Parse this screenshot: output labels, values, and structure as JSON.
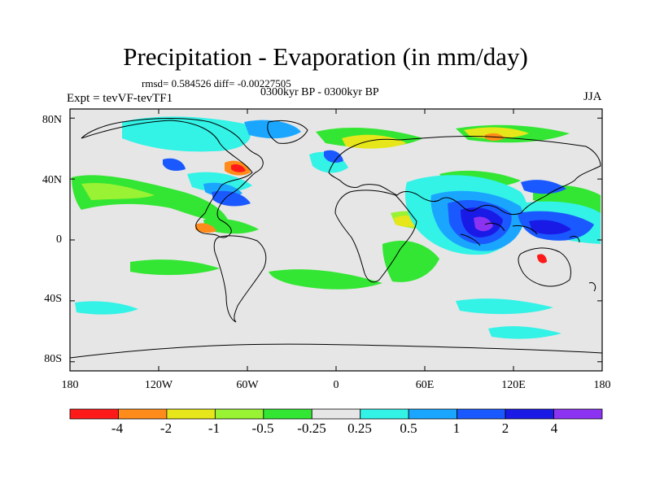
{
  "figure": {
    "title": "Precipitation - Evaporation (in mm/day)",
    "stats": "rmsd= 0.584526 diff= -0.00227505",
    "period": "0300kyr BP - 0300kyr BP",
    "experiment": "Expt = tevVF-tevTF1",
    "season": "JJA"
  },
  "axes": {
    "lat_labels": [
      "80N",
      "40N",
      "0",
      "40S",
      "80S"
    ],
    "lat_values": [
      80,
      40,
      0,
      -40,
      -80
    ],
    "lon_labels": [
      "180",
      "120W",
      "60W",
      "0",
      "60E",
      "120E",
      "180"
    ],
    "lon_values": [
      -180,
      -120,
      -60,
      0,
      60,
      120,
      180
    ]
  },
  "colorbar": {
    "colors": [
      "#ff1a1a",
      "#ff8c1a",
      "#e6e61a",
      "#99f233",
      "#33e633",
      "#e6e6e6",
      "#33f2e6",
      "#1aa6ff",
      "#1a59ff",
      "#1a1ae6",
      "#8c33f2"
    ],
    "labels": [
      "-4",
      "-2",
      "-1",
      "-0.5",
      "-0.25",
      "0.25",
      "0.5",
      "1",
      "2",
      "4"
    ]
  },
  "map_colors": {
    "background": "#e6e6e6",
    "coast": "#000000"
  }
}
